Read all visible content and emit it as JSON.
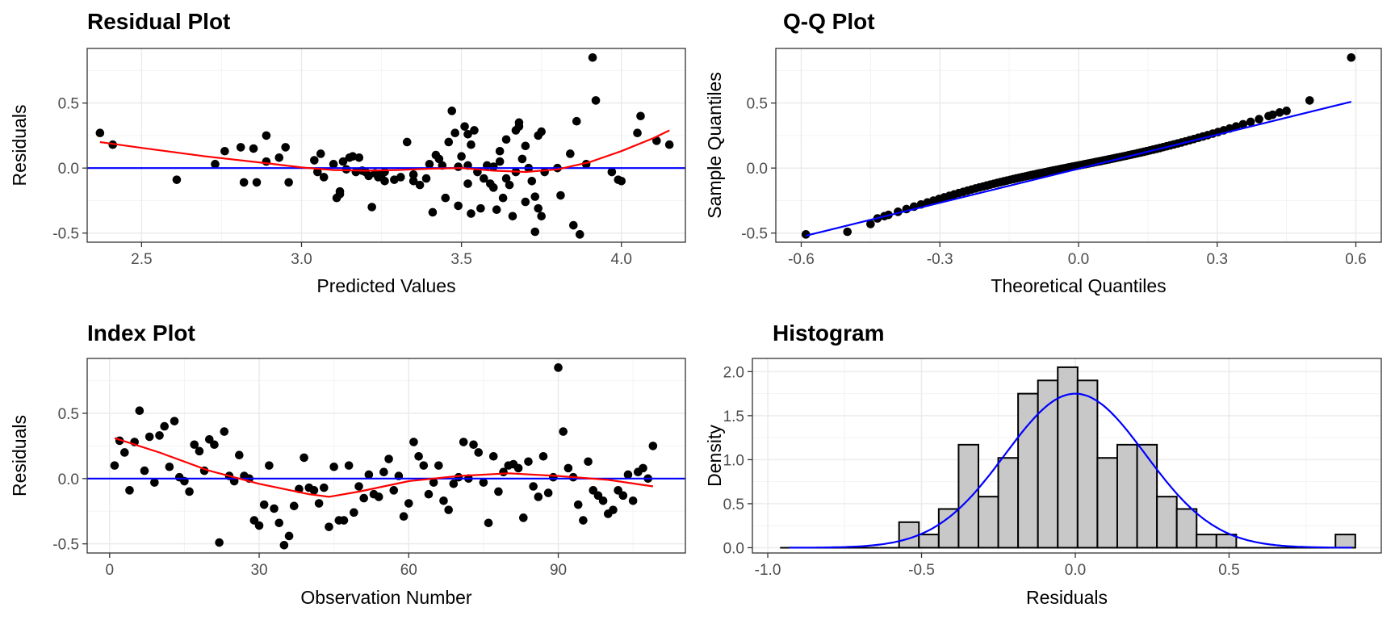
{
  "colors": {
    "points": "#000000",
    "smooth": "#ff0000",
    "reference": "#0000ff",
    "bar_fill": "#c8c8c8",
    "bar_edge": "#000000"
  },
  "chart_data": [
    {
      "type": "scatter",
      "title": "Residual Plot",
      "xlabel": "Predicted Values",
      "ylabel": "Residuals",
      "xlim": [
        2.33,
        4.2
      ],
      "ylim": [
        -0.57,
        0.92
      ],
      "xticks": [
        {
          "v": 2.5,
          "label": "2.5"
        },
        {
          "v": 3.0,
          "label": "3.0"
        },
        {
          "v": 3.5,
          "label": "3.5"
        },
        {
          "v": 4.0,
          "label": "4.0"
        }
      ],
      "yticks": [
        {
          "v": -0.5,
          "label": "-0.5"
        },
        {
          "v": 0.0,
          "label": "0.0"
        },
        {
          "v": 0.5,
          "label": "0.5"
        }
      ],
      "grid": true,
      "points": [
        [
          2.37,
          0.27
        ],
        [
          2.41,
          0.18
        ],
        [
          2.61,
          -0.09
        ],
        [
          2.73,
          0.03
        ],
        [
          2.76,
          0.13
        ],
        [
          2.81,
          0.16
        ],
        [
          2.82,
          -0.11
        ],
        [
          2.85,
          0.15
        ],
        [
          2.86,
          -0.11
        ],
        [
          2.89,
          0.25
        ],
        [
          2.89,
          0.05
        ],
        [
          2.93,
          0.08
        ],
        [
          2.95,
          0.16
        ],
        [
          2.96,
          -0.11
        ],
        [
          3.04,
          0.06
        ],
        [
          3.05,
          -0.03
        ],
        [
          3.06,
          0.11
        ],
        [
          3.1,
          0.03
        ],
        [
          3.11,
          -0.23
        ],
        [
          3.12,
          -0.18
        ],
        [
          3.12,
          -0.2
        ],
        [
          3.13,
          0.05
        ],
        [
          3.14,
          -0.01
        ],
        [
          3.15,
          0.08
        ],
        [
          3.16,
          0.09
        ],
        [
          3.17,
          -0.03
        ],
        [
          3.18,
          0.08
        ],
        [
          3.19,
          -0.02
        ],
        [
          3.2,
          -0.03
        ],
        [
          3.21,
          -0.06
        ],
        [
          3.22,
          -0.3
        ],
        [
          3.23,
          -0.04
        ],
        [
          3.24,
          -0.07
        ],
        [
          3.25,
          -0.05
        ],
        [
          3.26,
          -0.03
        ],
        [
          3.29,
          -0.09
        ],
        [
          3.31,
          -0.07
        ],
        [
          3.33,
          0.2
        ],
        [
          3.35,
          -0.1
        ],
        [
          3.37,
          -0.13
        ],
        [
          3.39,
          -0.08
        ],
        [
          3.4,
          0.03
        ],
        [
          3.41,
          -0.34
        ],
        [
          3.42,
          0.1
        ],
        [
          3.43,
          0.07
        ],
        [
          3.44,
          0.02
        ],
        [
          3.45,
          -0.23
        ],
        [
          3.46,
          0.2
        ],
        [
          3.47,
          0.44
        ],
        [
          3.48,
          0.27
        ],
        [
          3.49,
          -0.29
        ],
        [
          3.5,
          0.09
        ],
        [
          3.51,
          0.32
        ],
        [
          3.52,
          0.26
        ],
        [
          3.52,
          0.02
        ],
        [
          3.52,
          -0.12
        ],
        [
          3.53,
          -0.35
        ],
        [
          3.53,
          0.18
        ],
        [
          3.54,
          0.29
        ],
        [
          3.55,
          -0.03
        ],
        [
          3.56,
          -0.31
        ],
        [
          3.57,
          -0.08
        ],
        [
          3.59,
          -0.12
        ],
        [
          3.6,
          -0.15
        ],
        [
          3.6,
          0.01
        ],
        [
          3.61,
          -0.32
        ],
        [
          3.62,
          0.05
        ],
        [
          3.63,
          -0.23
        ],
        [
          3.64,
          0.22
        ],
        [
          3.64,
          -0.08
        ],
        [
          3.65,
          -0.13
        ],
        [
          3.66,
          -0.37
        ],
        [
          3.67,
          0.29
        ],
        [
          3.67,
          -0.03
        ],
        [
          3.68,
          0.35
        ],
        [
          3.68,
          0.32
        ],
        [
          3.69,
          0.07
        ],
        [
          3.7,
          0.17
        ],
        [
          3.7,
          -0.26
        ],
        [
          3.71,
          0.0
        ],
        [
          3.72,
          -0.1
        ],
        [
          3.73,
          -0.22
        ],
        [
          3.73,
          -0.49
        ],
        [
          3.74,
          -0.31
        ],
        [
          3.74,
          0.25
        ],
        [
          3.75,
          -0.37
        ],
        [
          3.75,
          0.28
        ],
        [
          3.76,
          -0.03
        ],
        [
          3.81,
          -0.21
        ],
        [
          3.84,
          0.11
        ],
        [
          3.85,
          -0.44
        ],
        [
          3.86,
          0.36
        ],
        [
          3.87,
          -0.51
        ],
        [
          3.89,
          0.03
        ],
        [
          3.91,
          0.85
        ],
        [
          3.92,
          0.52
        ],
        [
          3.97,
          -0.03
        ],
        [
          3.99,
          -0.09
        ],
        [
          4.0,
          -0.1
        ],
        [
          4.05,
          0.27
        ],
        [
          4.06,
          0.4
        ],
        [
          4.11,
          0.21
        ],
        [
          4.15,
          0.18
        ],
        [
          3.26,
          -0.1
        ],
        [
          3.35,
          -0.05
        ],
        [
          3.58,
          0.02
        ],
        [
          3.62,
          0.13
        ],
        [
          3.8,
          0.0
        ],
        [
          3.07,
          -0.07
        ],
        [
          3.49,
          0.01
        ]
      ],
      "smooth": [
        [
          2.37,
          0.2
        ],
        [
          2.5,
          0.155
        ],
        [
          2.7,
          0.09
        ],
        [
          2.9,
          0.035
        ],
        [
          3.0,
          0.005
        ],
        [
          3.1,
          -0.015
        ],
        [
          3.2,
          -0.02
        ],
        [
          3.3,
          -0.015
        ],
        [
          3.4,
          -0.005
        ],
        [
          3.5,
          0.0
        ],
        [
          3.6,
          -0.02
        ],
        [
          3.7,
          -0.03
        ],
        [
          3.8,
          -0.01
        ],
        [
          3.9,
          0.045
        ],
        [
          4.0,
          0.13
        ],
        [
          4.1,
          0.23
        ],
        [
          4.15,
          0.29
        ]
      ],
      "hline": 0
    },
    {
      "type": "scatter",
      "title": "Q-Q Plot",
      "xlabel": "Theoretical Quantiles",
      "ylabel": "Sample Quantiles",
      "xlim": [
        -0.655,
        0.655
      ],
      "ylim": [
        -0.57,
        0.92
      ],
      "xticks": [
        {
          "v": -0.6,
          "label": "-0.6"
        },
        {
          "v": -0.3,
          "label": "-0.3"
        },
        {
          "v": 0.0,
          "label": "0.0"
        },
        {
          "v": 0.3,
          "label": "0.3"
        },
        {
          "v": 0.6,
          "label": "0.6"
        }
      ],
      "yticks": [
        {
          "v": -0.5,
          "label": "-0.5"
        },
        {
          "v": 0.0,
          "label": "0.0"
        },
        {
          "v": 0.5,
          "label": "0.5"
        }
      ],
      "grid": true,
      "n": 110,
      "ends": [
        [
          -0.59,
          -0.51
        ],
        [
          -0.5,
          -0.49
        ],
        [
          -0.45,
          -0.43
        ],
        [
          -0.42,
          -0.37
        ],
        [
          0.42,
          0.41
        ],
        [
          0.45,
          0.44
        ],
        [
          0.5,
          0.52
        ],
        [
          0.59,
          0.85
        ]
      ],
      "qq_line": [
        [
          -0.59,
          -0.52
        ],
        [
          0.59,
          0.51
        ]
      ]
    },
    {
      "type": "scatter",
      "title": "Index Plot",
      "xlabel": "Observation Number",
      "ylabel": "Residuals",
      "xlim": [
        -4.5,
        115.5
      ],
      "ylim": [
        -0.57,
        0.92
      ],
      "xticks": [
        {
          "v": 0,
          "label": "0"
        },
        {
          "v": 30,
          "label": "30"
        },
        {
          "v": 60,
          "label": "60"
        },
        {
          "v": 90,
          "label": "90"
        }
      ],
      "yticks": [
        {
          "v": -0.5,
          "label": "-0.5"
        },
        {
          "v": 0.0,
          "label": "0.0"
        },
        {
          "v": 0.5,
          "label": "0.5"
        }
      ],
      "grid": true,
      "points": [
        [
          1,
          0.1
        ],
        [
          2,
          0.29
        ],
        [
          3,
          0.2
        ],
        [
          4,
          -0.09
        ],
        [
          5,
          0.28
        ],
        [
          6,
          0.52
        ],
        [
          7,
          0.06
        ],
        [
          8,
          0.32
        ],
        [
          9,
          -0.03
        ],
        [
          10,
          0.33
        ],
        [
          11,
          0.4
        ],
        [
          12,
          0.09
        ],
        [
          13,
          0.44
        ],
        [
          14,
          0.01
        ],
        [
          15,
          -0.02
        ],
        [
          16,
          -0.1
        ],
        [
          17,
          0.26
        ],
        [
          18,
          0.21
        ],
        [
          19,
          0.06
        ],
        [
          20,
          0.3
        ],
        [
          21,
          0.26
        ],
        [
          22,
          -0.49
        ],
        [
          23,
          0.36
        ],
        [
          24,
          0.02
        ],
        [
          25,
          -0.02
        ],
        [
          26,
          0.18
        ],
        [
          27,
          0.02
        ],
        [
          28,
          0.0
        ],
        [
          29,
          -0.32
        ],
        [
          30,
          -0.36
        ],
        [
          31,
          -0.2
        ],
        [
          32,
          0.1
        ],
        [
          33,
          -0.23
        ],
        [
          34,
          -0.34
        ],
        [
          35,
          -0.51
        ],
        [
          36,
          -0.44
        ],
        [
          37,
          -0.21
        ],
        [
          38,
          -0.08
        ],
        [
          39,
          0.16
        ],
        [
          40,
          -0.07
        ],
        [
          41,
          -0.09
        ],
        [
          42,
          -0.19
        ],
        [
          43,
          -0.07
        ],
        [
          44,
          -0.37
        ],
        [
          45,
          0.09
        ],
        [
          46,
          -0.32
        ],
        [
          47,
          -0.32
        ],
        [
          48,
          0.1
        ],
        [
          49,
          -0.26
        ],
        [
          50,
          -0.06
        ],
        [
          51,
          -0.15
        ],
        [
          52,
          0.03
        ],
        [
          53,
          -0.12
        ],
        [
          54,
          -0.14
        ],
        [
          55,
          0.05
        ],
        [
          56,
          0.15
        ],
        [
          57,
          -0.09
        ],
        [
          58,
          0.02
        ],
        [
          59,
          -0.29
        ],
        [
          60,
          -0.19
        ],
        [
          61,
          0.28
        ],
        [
          62,
          0.17
        ],
        [
          63,
          0.1
        ],
        [
          64,
          -0.12
        ],
        [
          65,
          -0.03
        ],
        [
          66,
          0.1
        ],
        [
          67,
          -0.17
        ],
        [
          68,
          -0.24
        ],
        [
          69,
          -0.04
        ],
        [
          70,
          0.01
        ],
        [
          71,
          0.28
        ],
        [
          72,
          0.0
        ],
        [
          73,
          0.26
        ],
        [
          74,
          0.2
        ],
        [
          75,
          -0.03
        ],
        [
          76,
          -0.34
        ],
        [
          77,
          0.17
        ],
        [
          78,
          -0.1
        ],
        [
          79,
          0.05
        ],
        [
          80,
          0.1
        ],
        [
          81,
          0.11
        ],
        [
          82,
          0.08
        ],
        [
          83,
          -0.3
        ],
        [
          84,
          0.13
        ],
        [
          85,
          -0.06
        ],
        [
          86,
          -0.14
        ],
        [
          87,
          0.17
        ],
        [
          88,
          -0.11
        ],
        [
          89,
          0.01
        ],
        [
          90,
          0.85
        ],
        [
          91,
          0.36
        ],
        [
          92,
          0.08
        ],
        [
          93,
          0.01
        ],
        [
          94,
          -0.2
        ],
        [
          95,
          -0.32
        ],
        [
          96,
          0.13
        ],
        [
          97,
          -0.09
        ],
        [
          98,
          -0.13
        ],
        [
          99,
          -0.17
        ],
        [
          100,
          -0.27
        ],
        [
          101,
          -0.24
        ],
        [
          102,
          -0.09
        ],
        [
          103,
          -0.13
        ],
        [
          104,
          0.03
        ],
        [
          105,
          -0.17
        ],
        [
          106,
          0.05
        ],
        [
          107,
          0.08
        ],
        [
          108,
          0.0
        ],
        [
          109,
          0.25
        ]
      ],
      "smooth": [
        [
          1,
          0.31
        ],
        [
          10,
          0.2
        ],
        [
          20,
          0.06
        ],
        [
          30,
          -0.04
        ],
        [
          40,
          -0.12
        ],
        [
          44,
          -0.14
        ],
        [
          50,
          -0.1
        ],
        [
          60,
          -0.02
        ],
        [
          70,
          0.02
        ],
        [
          80,
          0.04
        ],
        [
          90,
          0.02
        ],
        [
          100,
          -0.01
        ],
        [
          109,
          -0.06
        ]
      ],
      "hline": 0
    },
    {
      "type": "bar",
      "title": "Histogram",
      "xlabel": "Residuals",
      "ylabel": "Density",
      "xlim": [
        -1.05,
        0.995
      ],
      "ylim": [
        -0.06,
        2.15
      ],
      "xticks": [
        {
          "v": -1.0,
          "label": "-1.0"
        },
        {
          "v": -0.5,
          "label": "-0.5"
        },
        {
          "v": 0.0,
          "label": "0.0"
        },
        {
          "v": 0.5,
          "label": "0.5"
        }
      ],
      "yticks": [
        {
          "v": 0.0,
          "label": "0.0"
        },
        {
          "v": 0.5,
          "label": "0.5"
        },
        {
          "v": 1.0,
          "label": "1.0"
        },
        {
          "v": 1.5,
          "label": "1.5"
        },
        {
          "v": 2.0,
          "label": "2.0"
        }
      ],
      "grid": true,
      "bin_start": -0.96,
      "bin_width": 0.0645,
      "values": [
        0,
        0,
        0,
        0,
        0,
        0,
        0.29,
        0.15,
        0.44,
        1.17,
        0.58,
        1.02,
        1.75,
        1.9,
        2.05,
        1.9,
        1.02,
        1.17,
        1.17,
        0.58,
        0.44,
        0.15,
        0.15,
        0,
        0,
        0,
        0,
        0,
        0.15
      ],
      "density_curve": {
        "mean": 0.0,
        "sd": 0.228,
        "from": -0.93,
        "to": 0.9
      }
    }
  ]
}
